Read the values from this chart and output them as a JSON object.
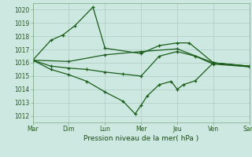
{
  "title": "Pression niveau de la mer( hPa )",
  "bg_color": "#cce8e0",
  "grid_color": "#aaccc4",
  "line_color": "#1a5c1a",
  "x_labels": [
    "Mar",
    "Dim",
    "Lun",
    "Mer",
    "Jeu",
    "Ven",
    "Sam"
  ],
  "x_ticks": [
    0,
    6,
    12,
    18,
    24,
    30,
    36
  ],
  "ylim": [
    1011.5,
    1020.5
  ],
  "yticks": [
    1012,
    1013,
    1014,
    1015,
    1016,
    1017,
    1018,
    1019,
    1020
  ],
  "s1_x": [
    0,
    6,
    12,
    18,
    24,
    30,
    36
  ],
  "s1_y": [
    1016.2,
    1016.1,
    1016.6,
    1016.85,
    1017.05,
    1016.0,
    1015.7
  ],
  "s2_x": [
    0,
    3,
    5,
    7,
    10,
    12,
    18,
    21,
    24,
    26,
    30,
    36
  ],
  "s2_y": [
    1016.2,
    1017.7,
    1018.1,
    1018.8,
    1020.2,
    1017.1,
    1016.7,
    1017.3,
    1017.5,
    1017.5,
    1016.0,
    1015.75
  ],
  "s3_x": [
    0,
    3,
    6,
    9,
    12,
    15,
    18,
    21,
    24,
    27,
    30,
    36
  ],
  "s3_y": [
    1016.2,
    1015.75,
    1015.6,
    1015.5,
    1015.3,
    1015.15,
    1015.0,
    1016.5,
    1016.85,
    1016.5,
    1015.9,
    1015.7
  ],
  "s4_x": [
    0,
    3,
    6,
    9,
    12,
    15,
    17,
    18,
    19,
    21,
    23,
    24,
    25,
    27,
    30,
    36
  ],
  "s4_y": [
    1016.2,
    1015.5,
    1015.1,
    1014.6,
    1013.8,
    1013.1,
    1012.15,
    1012.8,
    1013.5,
    1014.35,
    1014.6,
    1014.0,
    1014.35,
    1014.65,
    1016.0,
    1015.75
  ]
}
